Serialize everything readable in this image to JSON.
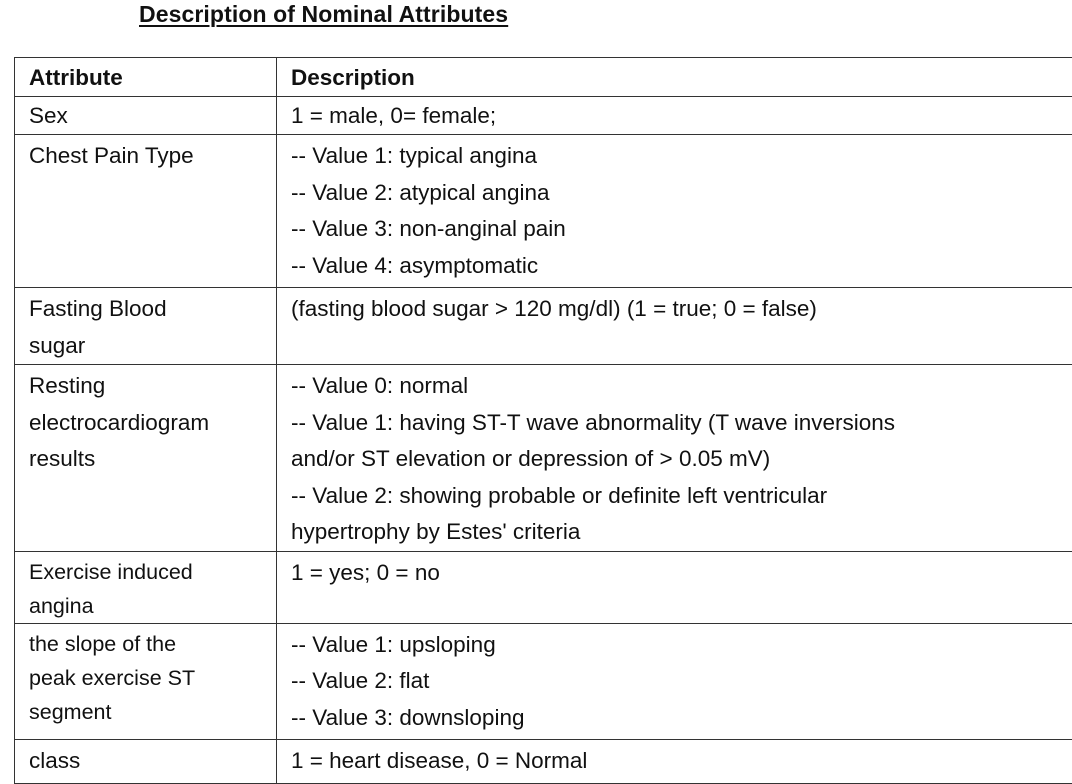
{
  "document": {
    "title": "Description of Nominal Attributes"
  },
  "table": {
    "headers": {
      "attribute": "Attribute",
      "description": "Description"
    },
    "rows": [
      {
        "attribute_lines": [
          "Sex"
        ],
        "description_lines": [
          "1 = male, 0= female;"
        ]
      },
      {
        "attribute_lines": [
          "Chest Pain Type"
        ],
        "description_lines": [
          "-- Value 1: typical angina",
          "-- Value 2: atypical angina",
          "-- Value 3: non-anginal pain",
          "-- Value 4: asymptomatic"
        ]
      },
      {
        "attribute_lines": [
          "Fasting Blood",
          "sugar"
        ],
        "description_lines": [
          "(fasting blood sugar > 120 mg/dl) (1 = true; 0 = false)"
        ]
      },
      {
        "attribute_lines": [
          "Resting",
          "electrocardiogram",
          "results"
        ],
        "description_lines": [
          "-- Value 0: normal",
          "-- Value 1: having ST-T wave abnormality (T wave inversions",
          "and/or ST elevation or depression of > 0.05 mV)",
          "-- Value 2: showing probable or definite left ventricular",
          "hypertrophy by Estes' criteria"
        ]
      },
      {
        "attribute_lines": [
          "Exercise induced",
          "angina"
        ],
        "description_lines": [
          "1 = yes; 0 = no"
        ]
      },
      {
        "attribute_lines": [
          "the slope of the",
          "peak exercise ST",
          "segment"
        ],
        "description_lines": [
          "-- Value 1: upsloping",
          "-- Value 2: flat",
          "-- Value 3: downsloping"
        ]
      },
      {
        "attribute_lines": [
          "class"
        ],
        "description_lines": [
          "1 = heart disease, 0 = Normal"
        ]
      }
    ]
  }
}
